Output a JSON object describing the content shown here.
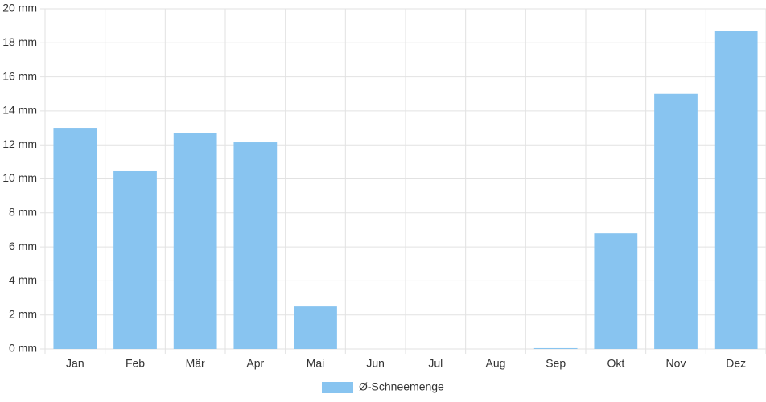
{
  "chart_data": {
    "type": "bar",
    "categories": [
      "Jan",
      "Feb",
      "Mär",
      "Apr",
      "Mai",
      "Jun",
      "Jul",
      "Aug",
      "Sep",
      "Okt",
      "Nov",
      "Dez"
    ],
    "series": [
      {
        "name": "Ø-Schneemenge",
        "color": "#88c4f0",
        "values": [
          13.0,
          10.45,
          12.7,
          12.15,
          2.5,
          0,
          0,
          0,
          0.05,
          6.8,
          15.0,
          18.7
        ]
      }
    ],
    "ylim": [
      0,
      20
    ],
    "yticks": [
      {
        "value": 0,
        "label": "0 mm"
      },
      {
        "value": 2,
        "label": "2 mm"
      },
      {
        "value": 4,
        "label": "4 mm"
      },
      {
        "value": 6,
        "label": "6 mm"
      },
      {
        "value": 8,
        "label": "8 mm"
      },
      {
        "value": 10,
        "label": "10 mm"
      },
      {
        "value": 12,
        "label": "12 mm"
      },
      {
        "value": 14,
        "label": "14 mm"
      },
      {
        "value": 16,
        "label": "16 mm"
      },
      {
        "value": 18,
        "label": "18 mm"
      },
      {
        "value": 20,
        "label": "20 mm"
      }
    ],
    "grid": true,
    "legend": "bottom"
  }
}
